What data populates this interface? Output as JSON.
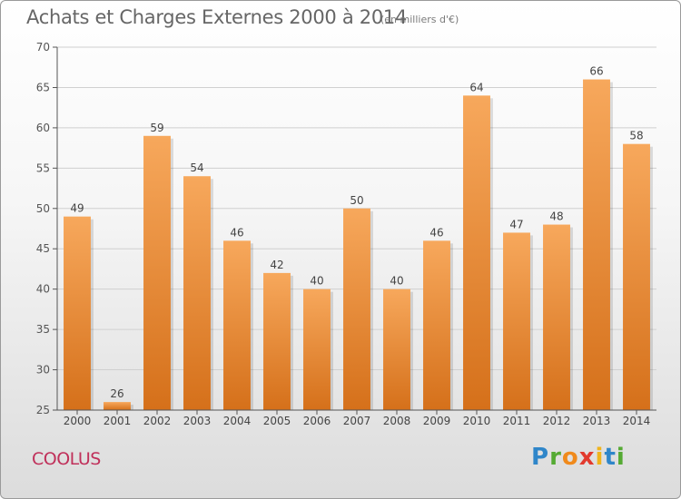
{
  "header": {
    "title": "Achats et Charges Externes 2000 à 2014",
    "unit": "(en milliers d'€)"
  },
  "footer": {
    "commune": "COOLUS",
    "brand_logo": "Proxiti"
  },
  "colors": {
    "bar_top": "#f7a85c",
    "bar_bottom": "#d5701a",
    "grid": "#d0d0d0",
    "axis": "#555555",
    "commune": "#c0305a"
  },
  "chart_data": {
    "type": "bar",
    "categories": [
      "2000",
      "2001",
      "2002",
      "2003",
      "2004",
      "2005",
      "2006",
      "2007",
      "2008",
      "2009",
      "2010",
      "2011",
      "2012",
      "2013",
      "2014"
    ],
    "values": [
      49,
      26,
      59,
      54,
      46,
      42,
      40,
      50,
      40,
      46,
      64,
      47,
      48,
      66,
      58
    ],
    "title": "Achats et Charges Externes 2000 à 2014",
    "xlabel": "",
    "ylabel": "",
    "ylim": [
      25,
      70
    ],
    "yticks": [
      25,
      30,
      35,
      40,
      45,
      50,
      55,
      60,
      65,
      70
    ],
    "grid": true,
    "data_labels": true
  }
}
